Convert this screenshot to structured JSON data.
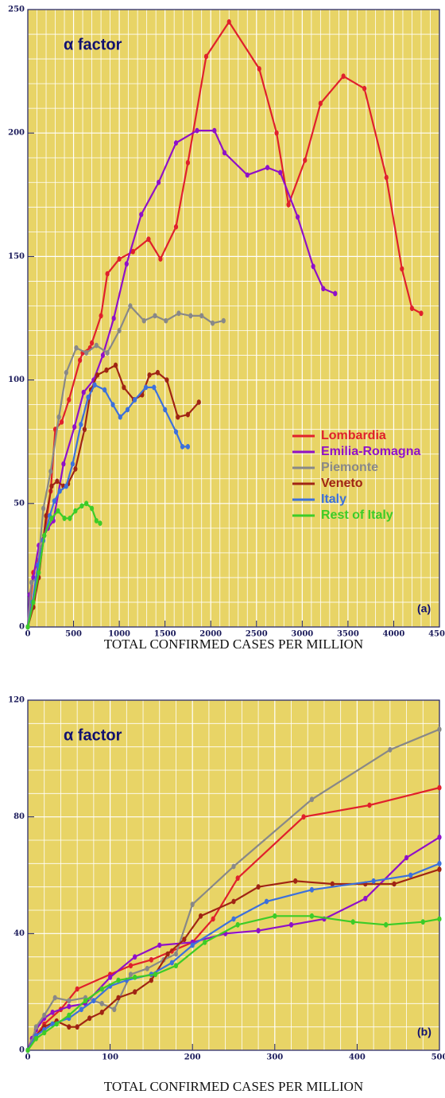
{
  "chart_data": [
    {
      "type": "line",
      "annotation": "α factor",
      "panel_label": "(a)",
      "xlabel": "TOTAL CONFIRMED CASES PER MILLION",
      "xlim": [
        0,
        4500
      ],
      "xticks": [
        0,
        500,
        1000,
        1500,
        2000,
        2500,
        3000,
        3500,
        4000,
        4500
      ],
      "ylim": [
        0,
        250
      ],
      "yticks": [
        0,
        50,
        100,
        150,
        200,
        250
      ],
      "grid": true,
      "legend": "lower right",
      "series": [
        {
          "name": "Lombardia",
          "color": "#e0202c",
          "x": [
            0,
            60,
            120,
            180,
            250,
            300,
            370,
            450,
            570,
            600,
            680,
            700,
            800,
            870,
            1000,
            1150,
            1320,
            1450,
            1620,
            1750,
            1950,
            2200,
            2530,
            2720,
            2850,
            3030,
            3200,
            3450,
            3680,
            3920,
            4090,
            4200,
            4300
          ],
          "values": [
            0,
            22,
            27,
            37,
            55,
            80,
            83,
            92,
            108,
            111,
            113,
            115,
            126,
            143,
            149,
            152,
            157,
            149,
            162,
            188,
            231,
            245,
            226,
            200,
            171,
            189,
            212,
            223,
            218,
            182,
            145,
            129,
            127
          ]
        },
        {
          "name": "Emilia-Romagna",
          "color": "#9010c8",
          "x": [
            0,
            20,
            60,
            120,
            220,
            280,
            390,
            510,
            610,
            720,
            820,
            940,
            1080,
            1240,
            1430,
            1620,
            1850,
            2040,
            2150,
            2400,
            2620,
            2760,
            2950,
            3120,
            3230,
            3360
          ],
          "values": [
            0,
            13,
            20,
            33,
            40,
            43,
            66,
            81,
            95,
            100,
            110,
            125,
            147,
            167,
            180,
            196,
            201,
            201,
            192,
            183,
            186,
            184,
            166,
            146,
            137,
            135
          ]
        },
        {
          "name": "Piemonte",
          "color": "#888888",
          "x": [
            0,
            40,
            100,
            170,
            250,
            340,
            420,
            530,
            640,
            750,
            870,
            1000,
            1120,
            1270,
            1390,
            1510,
            1650,
            1780,
            1900,
            2020,
            2140
          ],
          "values": [
            0,
            18,
            20,
            48,
            63,
            85,
            103,
            113,
            111,
            114,
            111,
            120,
            130,
            124,
            126,
            124,
            127,
            126,
            126,
            123,
            124
          ]
        },
        {
          "name": "Veneto",
          "color": "#a02414",
          "x": [
            0,
            60,
            120,
            200,
            260,
            320,
            390,
            440,
            520,
            620,
            690,
            760,
            860,
            960,
            1050,
            1160,
            1250,
            1330,
            1420,
            1520,
            1640,
            1750,
            1870
          ],
          "values": [
            0,
            8,
            20,
            45,
            57,
            59,
            57,
            58,
            64,
            80,
            96,
            102,
            104,
            106,
            97,
            92,
            94,
            102,
            103,
            100,
            85,
            86,
            91
          ]
        },
        {
          "name": "Italy",
          "color": "#3c70dc",
          "x": [
            0,
            50,
            110,
            170,
            240,
            290,
            350,
            420,
            490,
            580,
            660,
            730,
            840,
            930,
            1010,
            1090,
            1170,
            1290,
            1380,
            1500,
            1620,
            1690,
            1750
          ],
          "values": [
            0,
            10,
            25,
            35,
            45,
            51,
            55,
            57,
            66,
            82,
            93,
            98,
            96,
            90,
            85,
            88,
            92,
            97,
            97,
            88,
            79,
            73,
            73
          ]
        },
        {
          "name": "Rest of Italy",
          "color": "#3ccc28",
          "x": [
            0,
            60,
            120,
            180,
            260,
            330,
            400,
            460,
            520,
            590,
            640,
            700,
            750,
            790
          ],
          "values": [
            0,
            10,
            22,
            37,
            44,
            47,
            44,
            44,
            47,
            49,
            50,
            48,
            43,
            42
          ]
        }
      ]
    },
    {
      "type": "line",
      "annotation": "α factor",
      "panel_label": "(b)",
      "xlabel": "TOTAL CONFIRMED CASES PER MILLION",
      "xlim": [
        0,
        500
      ],
      "xticks": [
        0,
        100,
        200,
        300,
        400,
        500
      ],
      "ylim": [
        0,
        120
      ],
      "yticks": [
        0,
        40,
        80,
        120
      ],
      "grid": true,
      "legend": false,
      "series": [
        {
          "name": "Lombardia",
          "color": "#e0202c",
          "x": [
            0,
            5,
            10,
            20,
            40,
            60,
            100,
            125,
            150,
            175,
            200,
            225,
            255,
            335,
            415,
            500
          ],
          "values": [
            0,
            3,
            5,
            9,
            14,
            21,
            26,
            29,
            31,
            34,
            37,
            45,
            59,
            80,
            84,
            90
          ]
        },
        {
          "name": "Emilia-Romagna",
          "color": "#9010c8",
          "x": [
            0,
            5,
            10,
            20,
            30,
            50,
            70,
            100,
            130,
            160,
            200,
            240,
            280,
            320,
            360,
            410,
            460,
            500
          ],
          "values": [
            0,
            4,
            7,
            11,
            13,
            15,
            16,
            25,
            32,
            36,
            37,
            40,
            41,
            43,
            45,
            52,
            66,
            73
          ]
        },
        {
          "name": "Piemonte",
          "color": "#888888",
          "x": [
            0,
            5,
            10,
            20,
            33,
            50,
            70,
            90,
            105,
            125,
            145,
            165,
            180,
            200,
            250,
            345,
            440,
            500
          ],
          "values": [
            0,
            3,
            8,
            12,
            18,
            17,
            18,
            16,
            14,
            26,
            28,
            31,
            33,
            50,
            63,
            86,
            103,
            110
          ]
        },
        {
          "name": "Veneto",
          "color": "#a02414",
          "x": [
            0,
            10,
            20,
            35,
            50,
            60,
            75,
            90,
            110,
            130,
            150,
            170,
            190,
            210,
            250,
            280,
            325,
            370,
            410,
            445,
            500
          ],
          "values": [
            0,
            5,
            8,
            10,
            8,
            8,
            11,
            13,
            18,
            20,
            24,
            33,
            38,
            46,
            51,
            56,
            58,
            57,
            57,
            57,
            62
          ]
        },
        {
          "name": "Italy",
          "color": "#3c70dc",
          "x": [
            0,
            10,
            20,
            30,
            50,
            65,
            80,
            100,
            120,
            150,
            175,
            200,
            250,
            290,
            345,
            420,
            465,
            500
          ],
          "values": [
            0,
            5,
            7,
            9,
            11,
            14,
            17,
            22,
            24,
            26,
            30,
            36,
            45,
            51,
            55,
            58,
            60,
            64
          ]
        },
        {
          "name": "Rest of Italy",
          "color": "#3ccc28",
          "x": [
            0,
            10,
            20,
            35,
            50,
            70,
            90,
            110,
            130,
            155,
            180,
            215,
            255,
            300,
            345,
            395,
            435,
            480,
            500
          ],
          "values": [
            0,
            4,
            6,
            9,
            12,
            17,
            21,
            24,
            25,
            26,
            29,
            37,
            43,
            46,
            46,
            44,
            43,
            44,
            45
          ]
        }
      ]
    }
  ]
}
